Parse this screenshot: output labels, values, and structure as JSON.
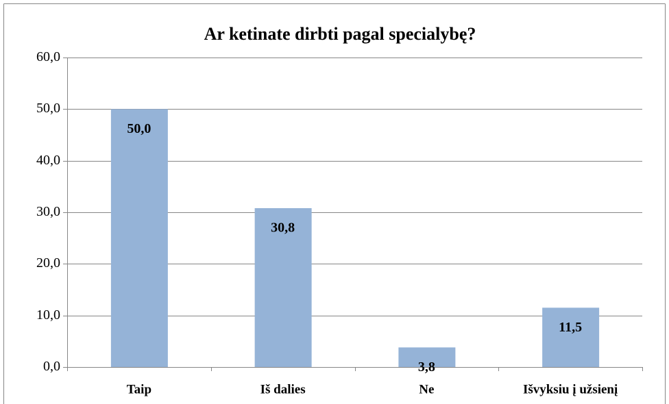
{
  "chart_data": {
    "type": "bar",
    "title": "Ar ketinate dirbti pagal specialybę?",
    "categories": [
      "Taip",
      "Iš dalies",
      "Ne",
      "Išvyksiu į užsienį"
    ],
    "values": [
      50.0,
      30.8,
      3.8,
      11.5
    ],
    "value_labels": [
      "50,0",
      "30,8",
      "3,8",
      "11,5"
    ],
    "color": "#95b3d7",
    "ylim": [
      0,
      60
    ],
    "yticks": [
      {
        "value": 0,
        "label": "0,0"
      },
      {
        "value": 10,
        "label": "10,0"
      },
      {
        "value": 20,
        "label": "20,0"
      },
      {
        "value": 30,
        "label": "30,0"
      },
      {
        "value": 40,
        "label": "40,0"
      },
      {
        "value": 50,
        "label": "50,0"
      },
      {
        "value": 60,
        "label": "60,0"
      }
    ],
    "grid": true
  }
}
